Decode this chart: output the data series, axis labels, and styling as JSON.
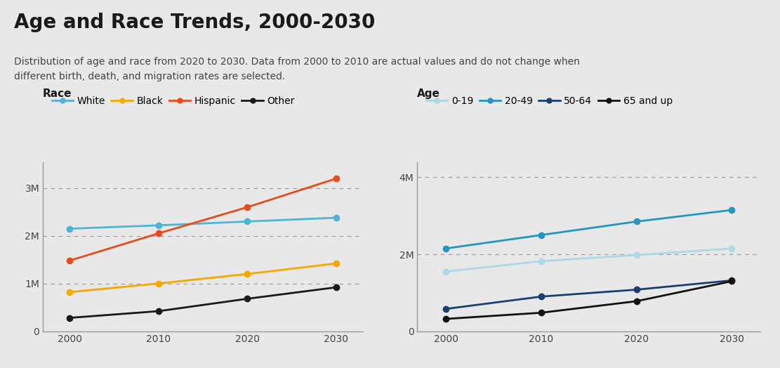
{
  "title": "Age and Race Trends, 2000-2030",
  "subtitle": "Distribution of age and race from 2020 to 2030. Data from 2000 to 2010 are actual values and do not change when\ndifferent birth, death, and migration rates are selected.",
  "years": [
    2000,
    2010,
    2020,
    2030
  ],
  "race": {
    "label": "Race",
    "series": [
      {
        "name": "White",
        "color": "#4db3d9",
        "values": [
          2.15,
          2.22,
          2.3,
          2.38
        ]
      },
      {
        "name": "Black",
        "color": "#f5a800",
        "values": [
          0.82,
          1.0,
          1.2,
          1.42
        ]
      },
      {
        "name": "Hispanic",
        "color": "#e84b1a",
        "values": [
          1.48,
          2.05,
          2.6,
          3.2
        ]
      },
      {
        "name": "Other",
        "color": "#1a1a1a",
        "values": [
          0.28,
          0.42,
          0.68,
          0.92
        ]
      }
    ],
    "ylim": [
      0,
      3.55
    ],
    "yticks": [
      0,
      1,
      2,
      3
    ],
    "ytick_labels": [
      "0",
      "1M",
      "2M",
      "3M"
    ]
  },
  "age": {
    "label": "Age",
    "series": [
      {
        "name": "0-19",
        "color": "#add8e6",
        "values": [
          1.55,
          1.82,
          1.98,
          2.15
        ]
      },
      {
        "name": "20-49",
        "color": "#2196c4",
        "values": [
          2.15,
          2.5,
          2.85,
          3.15
        ]
      },
      {
        "name": "50-64",
        "color": "#1a3f6f",
        "values": [
          0.58,
          0.9,
          1.08,
          1.32
        ]
      },
      {
        "name": "65 and up",
        "color": "#111111",
        "values": [
          0.32,
          0.48,
          0.78,
          1.3
        ]
      }
    ],
    "ylim": [
      0,
      4.4
    ],
    "yticks": [
      0,
      2,
      4
    ],
    "ytick_labels": [
      "0",
      "2M",
      "4M"
    ]
  },
  "background_color": "#e8e8e8",
  "title_fontsize": 20,
  "subtitle_fontsize": 10,
  "section_label_fontsize": 11,
  "tick_fontsize": 10,
  "legend_fontsize": 10,
  "line_width": 2.0,
  "marker_size": 6,
  "grid_color": "#999999",
  "spine_color": "#999999"
}
